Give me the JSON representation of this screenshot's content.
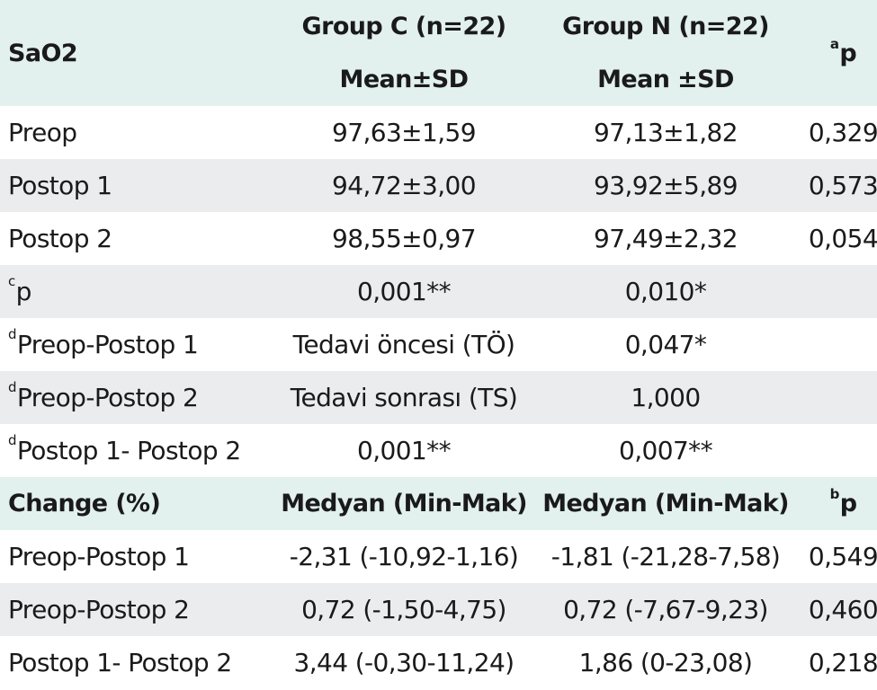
{
  "header": {
    "row_label": "SaO2",
    "group_c_title": "Group C (n=22)",
    "group_c_stat": "Mean±SD",
    "group_n_title": "Group N (n=22)",
    "group_n_stat": "Mean ±SD",
    "p_sup": "a",
    "p_label": "p"
  },
  "rows": [
    {
      "label": "Preop",
      "c": "97,63±1,59",
      "n": "97,13±1,82",
      "p": "0,329"
    },
    {
      "label": "Postop 1",
      "c": "94,72±3,00",
      "n": "93,92±5,89",
      "p": "0,573"
    },
    {
      "label": "Postop 2",
      "c": "98,55±0,97",
      "n": "97,49±2,32",
      "p": "0,054"
    },
    {
      "sup": "c",
      "label": "p",
      "c": "0,001**",
      "n": "0,010*",
      "p": ""
    },
    {
      "sup": "d",
      "label": "Preop-Postop 1",
      "c": "Tedavi öncesi (TÖ)",
      "n": "0,047*",
      "p": ""
    },
    {
      "sup": "d",
      "label": "Preop-Postop 2",
      "c": "Tedavi sonrası (TS)",
      "n": "1,000",
      "p": ""
    },
    {
      "sup": "d",
      "label": "Postop 1- Postop 2",
      "c": "0,001**",
      "n": "0,007**",
      "p": ""
    }
  ],
  "change_header": {
    "label": "Change (%)",
    "c": "Medyan (Min-Mak)",
    "n": "Medyan (Min-Mak)",
    "p_sup": "b",
    "p_label": "p"
  },
  "change_rows": [
    {
      "label": "Preop-Postop 1",
      "c": "-2,31 (-10,92-1,16)",
      "n": "-1,81 (-21,28-7,58)",
      "p": "0,549"
    },
    {
      "label": "Preop-Postop 2",
      "c": "0,72 (-1,50-4,75)",
      "n": "0,72 (-7,67-9,23)",
      "p": "0,460"
    },
    {
      "label": "Postop 1- Postop 2",
      "c": "3,44 (-0,30-11,24)",
      "n": "1,86 (0-23,08)",
      "p": "0,218"
    }
  ]
}
